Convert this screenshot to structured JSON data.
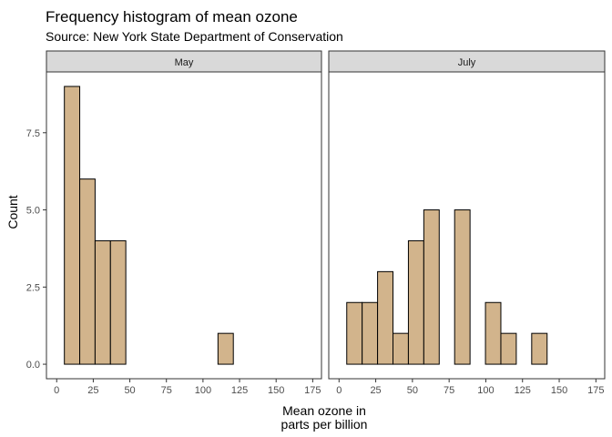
{
  "chart_data": {
    "type": "bar",
    "title": "Frequency histogram of mean ozone",
    "subtitle": "Source: New York State Department of Conservation",
    "xlabel_lines": [
      "Mean ozone in",
      "parts per billion"
    ],
    "ylabel": "Count",
    "xlim": [
      -7,
      181
    ],
    "ylim": [
      -0.47,
      9.47
    ],
    "x_ticks": [
      0,
      25,
      50,
      75,
      100,
      125,
      150,
      175
    ],
    "y_ticks": [
      0,
      2.5,
      5,
      7.5
    ],
    "y_tick_labels": [
      "0.0",
      "2.5",
      "5.0",
      "7.5"
    ],
    "bin_width": 10.5,
    "bar_fill": "#d2b48c",
    "bar_stroke": "#000000",
    "strip_fill": "#d9d9d9",
    "facets": [
      {
        "label": "May",
        "bins": [
          {
            "x": 10.5,
            "count": 9
          },
          {
            "x": 21,
            "count": 6
          },
          {
            "x": 31.5,
            "count": 4
          },
          {
            "x": 42,
            "count": 4
          },
          {
            "x": 52.5,
            "count": 0
          },
          {
            "x": 63,
            "count": 0
          },
          {
            "x": 73.5,
            "count": 0
          },
          {
            "x": 84,
            "count": 0
          },
          {
            "x": 94.5,
            "count": 0
          },
          {
            "x": 105,
            "count": 0
          },
          {
            "x": 115.5,
            "count": 1
          },
          {
            "x": 126,
            "count": 0
          },
          {
            "x": 136.5,
            "count": 0
          },
          {
            "x": 147,
            "count": 0
          },
          {
            "x": 157.5,
            "count": 0
          },
          {
            "x": 168,
            "count": 0
          }
        ]
      },
      {
        "label": "July",
        "bins": [
          {
            "x": 10.5,
            "count": 2
          },
          {
            "x": 21,
            "count": 2
          },
          {
            "x": 31.5,
            "count": 3
          },
          {
            "x": 42,
            "count": 1
          },
          {
            "x": 52.5,
            "count": 4
          },
          {
            "x": 63,
            "count": 5
          },
          {
            "x": 73.5,
            "count": 0
          },
          {
            "x": 84,
            "count": 5
          },
          {
            "x": 94.5,
            "count": 0
          },
          {
            "x": 105,
            "count": 2
          },
          {
            "x": 115.5,
            "count": 1
          },
          {
            "x": 126,
            "count": 0
          },
          {
            "x": 136.5,
            "count": 1
          },
          {
            "x": 147,
            "count": 0
          },
          {
            "x": 157.5,
            "count": 0
          },
          {
            "x": 168,
            "count": 0
          }
        ]
      }
    ]
  }
}
